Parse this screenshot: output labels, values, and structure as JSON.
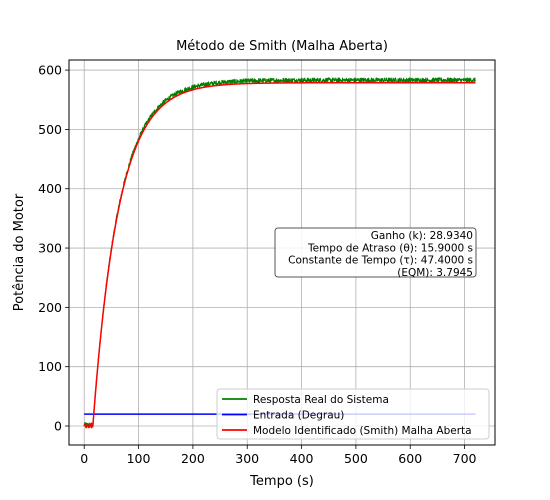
{
  "chart_data": {
    "type": "line",
    "title": "Método de Smith (Malha Aberta)",
    "xlabel": "Tempo (s)",
    "ylabel": "Potência do Motor",
    "xlim": [
      -28,
      756
    ],
    "ylim": [
      -32,
      617
    ],
    "xticks": [
      0,
      100,
      200,
      300,
      400,
      500,
      600,
      700
    ],
    "yticks": [
      0,
      100,
      200,
      300,
      400,
      500,
      600
    ],
    "grid": true,
    "legend_position": "lower right",
    "colors": {
      "real": "#008000",
      "input": "#0000ff",
      "model": "#ff0000"
    },
    "series": [
      {
        "name": "Resposta Real do Sistema",
        "color": "#008000",
        "kind": "first_order_delay_noisy",
        "x_range": [
          0,
          720
        ],
        "gain_output": 583,
        "delay": 15.9,
        "tau": 47.4,
        "initial_value": 2,
        "noise_amplitude": 4
      },
      {
        "name": "Entrada (Degrau)",
        "color": "#0000ff",
        "kind": "constant",
        "x_range": [
          0,
          720
        ],
        "value": 20
      },
      {
        "name": "Modelo Identificado (Smith) Malha Aberta",
        "color": "#ff0000",
        "kind": "first_order_delay",
        "x_range": [
          0,
          720
        ],
        "gain_output": 578.7,
        "delay": 15.9,
        "tau": 47.4,
        "initial_value": 0
      }
    ],
    "annotation": {
      "lines": [
        "Ganho (k): 28.9340",
        "Tempo de Atraso (θ): 15.9000 s",
        "Constante de Tempo (τ): 47.4000 s",
        "(EQM): 3.7945"
      ]
    }
  }
}
